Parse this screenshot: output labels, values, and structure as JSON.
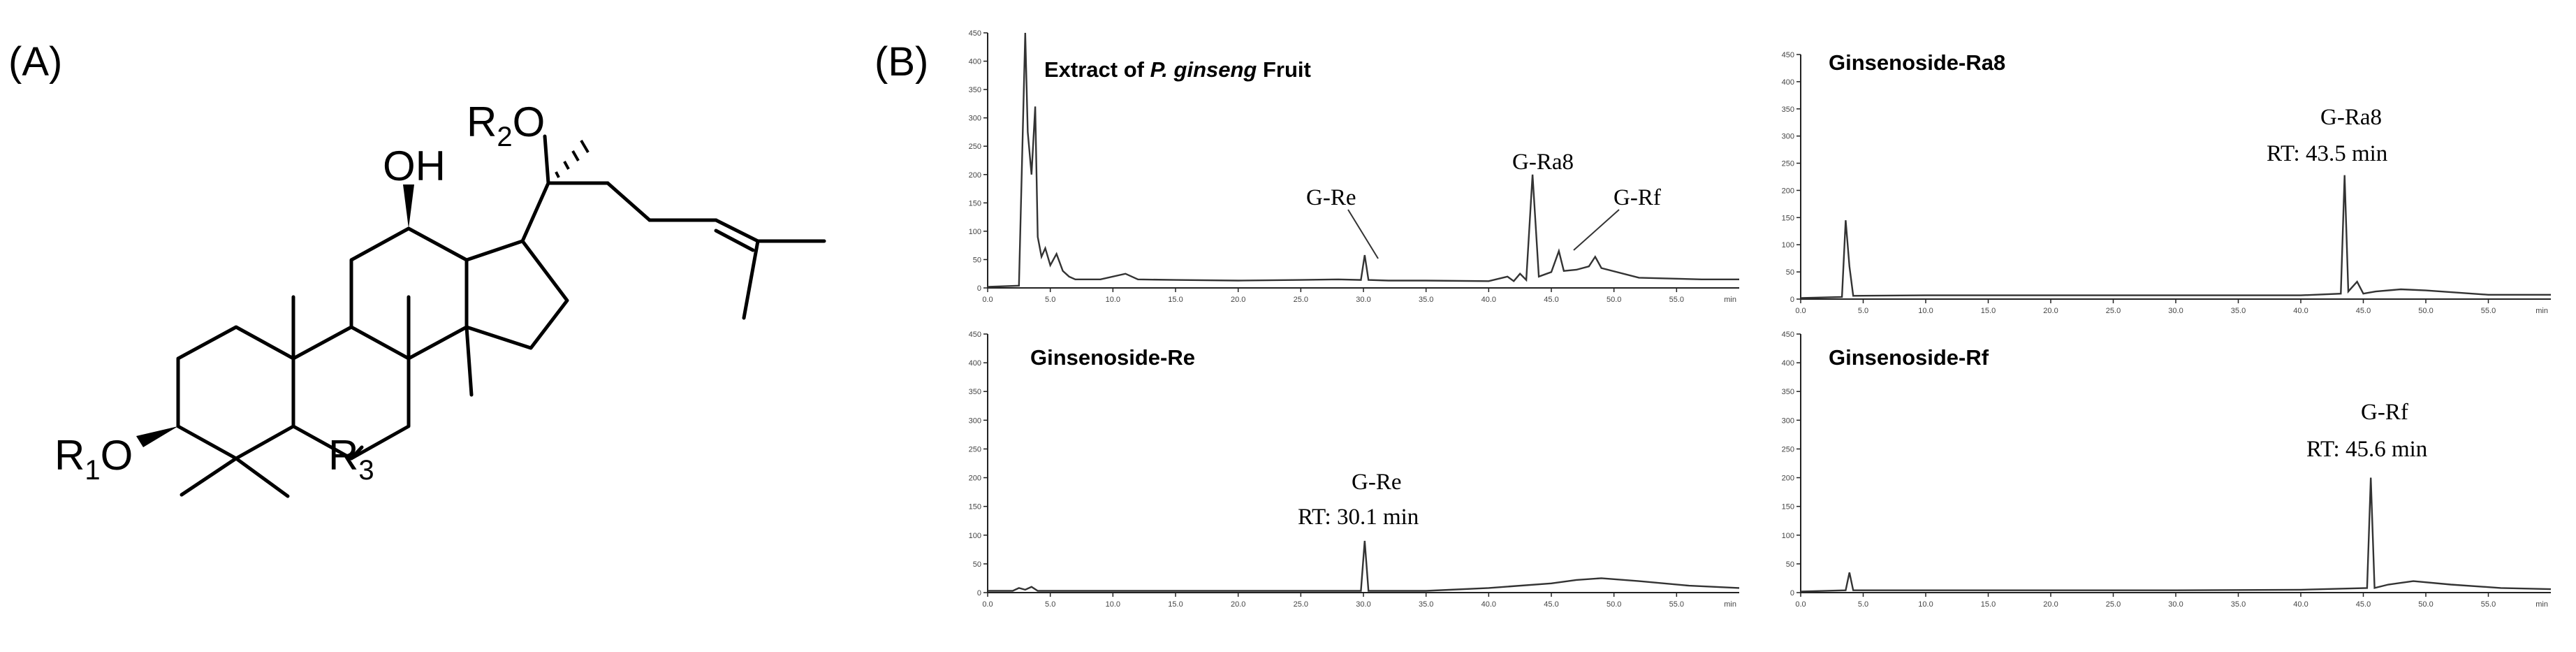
{
  "panels": {
    "a_label": "(A)",
    "b_label": "(B)"
  },
  "structure": {
    "oh": "OH",
    "r2": "R",
    "r2_sub": "2",
    "r2_o": "O",
    "r1": "R",
    "r1_sub": "1",
    "r1_o": "O",
    "r3": "R",
    "r3_sub": "3"
  },
  "chromatograms": {
    "extract": {
      "title_pre": "Extract of ",
      "title_italic": "P. ginseng",
      "title_post": " Fruit",
      "peak_re": "G-Re",
      "peak_ra8": "G-Ra8",
      "peak_rf": "G-Rf"
    },
    "ra8": {
      "title": "Ginsenoside-Ra8",
      "peak_label": "G-Ra8",
      "peak_rt": "RT: 43.5 min"
    },
    "re": {
      "title": "Ginsenoside-Re",
      "peak_label": "G-Re",
      "peak_rt": "RT: 30.1 min"
    },
    "rf": {
      "title": "Ginsenoside-Rf",
      "peak_label": "G-Rf",
      "peak_rt": "RT: 45.6 min"
    }
  },
  "axes": {
    "y_ticks": [
      "0",
      "50",
      "100",
      "150",
      "200",
      "250",
      "300",
      "350",
      "400",
      "450"
    ],
    "x_ticks": [
      "0.0",
      "5.0",
      "10.0",
      "15.0",
      "20.0",
      "25.0",
      "30.0",
      "35.0",
      "40.0",
      "45.0",
      "50.0",
      "55.0"
    ],
    "x_unit": "min"
  },
  "chart_data": [
    {
      "type": "line",
      "title": "Extract of P. ginseng Fruit",
      "xlabel": "min",
      "xlim": [
        0,
        60
      ],
      "ylim": [
        0,
        450
      ],
      "annotations": [
        "G-Re",
        "G-Ra8",
        "G-Rf"
      ],
      "x": [
        0,
        2.5,
        3,
        3.2,
        3.5,
        3.8,
        4,
        4.3,
        4.6,
        5,
        5.5,
        6,
        6.5,
        7,
        9,
        11,
        12,
        15,
        20,
        25,
        28,
        29.8,
        30.1,
        30.4,
        32,
        35,
        40,
        41.5,
        42,
        42.5,
        43,
        43.5,
        44,
        45,
        45.6,
        46,
        47,
        48,
        48.5,
        49,
        52,
        57,
        60
      ],
      "values": [
        2,
        4,
        450,
        275,
        200,
        320,
        90,
        55,
        70,
        40,
        60,
        30,
        20,
        15,
        15,
        25,
        15,
        14,
        13,
        14,
        15,
        14,
        58,
        14,
        13,
        13,
        12,
        20,
        12,
        25,
        14,
        200,
        20,
        28,
        65,
        30,
        32,
        38,
        55,
        35,
        18,
        15,
        15
      ]
    },
    {
      "type": "line",
      "title": "Ginsenoside-Ra8",
      "xlabel": "min",
      "xlim": [
        0,
        60
      ],
      "ylim": [
        0,
        450
      ],
      "annotations": [
        "G-Ra8",
        "RT: 43.5 min"
      ],
      "x": [
        0,
        3.3,
        3.6,
        3.9,
        4.2,
        10,
        20,
        30,
        40,
        43.2,
        43.5,
        43.8,
        44.5,
        45,
        46,
        48,
        50,
        55,
        60
      ],
      "values": [
        2,
        4,
        145,
        60,
        6,
        7,
        7,
        7,
        7,
        10,
        228,
        14,
        32,
        10,
        14,
        18,
        16,
        8,
        8
      ]
    },
    {
      "type": "line",
      "title": "Ginsenoside-Re",
      "xlabel": "min",
      "xlim": [
        0,
        60
      ],
      "ylim": [
        0,
        450
      ],
      "annotations": [
        "G-Re",
        "RT: 30.1 min"
      ],
      "x": [
        0,
        2,
        2.5,
        3,
        3.5,
        4,
        10,
        20,
        29.8,
        30.1,
        30.4,
        35,
        40,
        45,
        47,
        49,
        52,
        56,
        60
      ],
      "values": [
        3,
        3,
        8,
        5,
        10,
        3,
        3,
        3,
        3,
        90,
        3,
        3,
        8,
        16,
        22,
        25,
        20,
        12,
        8
      ]
    },
    {
      "type": "line",
      "title": "Ginsenoside-Rf",
      "xlabel": "min",
      "xlim": [
        0,
        60
      ],
      "ylim": [
        0,
        450
      ],
      "annotations": [
        "G-Rf",
        "RT: 45.6 min"
      ],
      "x": [
        0,
        3.6,
        3.9,
        4.2,
        10,
        20,
        30,
        40,
        45.3,
        45.6,
        45.9,
        47,
        49,
        52,
        56,
        60
      ],
      "values": [
        2,
        4,
        35,
        4,
        4,
        4,
        4,
        5,
        8,
        200,
        8,
        14,
        20,
        14,
        8,
        6
      ]
    }
  ]
}
